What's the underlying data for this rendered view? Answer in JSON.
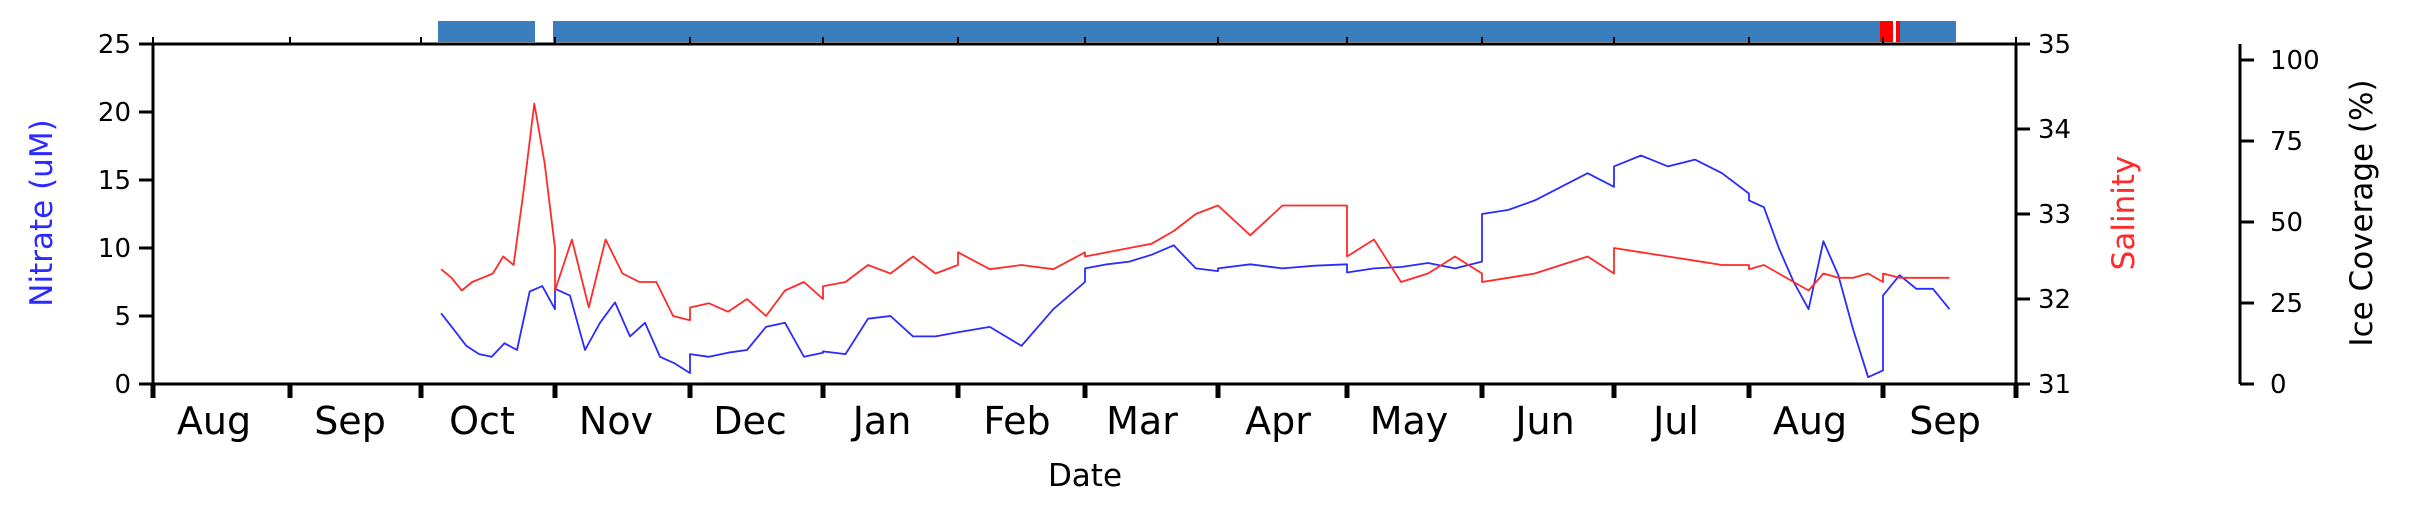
{
  "chart_data": {
    "type": "line",
    "xlabel": "Date",
    "x_tick_labels": [
      "Aug",
      "Sep",
      "Oct",
      "Nov",
      "Dec",
      "Jan",
      "Feb",
      "Mar",
      "Apr",
      "May",
      "Jun",
      "Jul",
      "Aug",
      "Sep"
    ],
    "y_left": {
      "label": "Nitrate (uM)",
      "color": "#2b2bff",
      "ylim": [
        0,
        25
      ],
      "ticks": [
        "0",
        "5",
        "10",
        "15",
        "20",
        "25"
      ]
    },
    "y_right": {
      "label": "Salinity",
      "color": "#ff2b2b",
      "ylim": [
        31,
        35
      ],
      "ticks": [
        "31",
        "32",
        "33",
        "34",
        "35"
      ]
    },
    "y_ice": {
      "label": "Ice Coverage (%)",
      "ylim": [
        0,
        100
      ],
      "ticks": [
        "0",
        "25",
        "50",
        "75",
        "100"
      ]
    },
    "ice_bar": {
      "colors": {
        "ice": "#3a7ebf",
        "open": "#ff0000"
      },
      "segments": [
        {
          "start": "Oct",
          "end": "Oct",
          "state": "ice"
        },
        {
          "start": "Oct",
          "end": "Aug",
          "state": "ice"
        },
        {
          "start": "Aug",
          "end": "Aug",
          "state": "open"
        },
        {
          "start": "Aug",
          "end": "Sep",
          "state": "ice"
        }
      ]
    },
    "series": [
      {
        "name": "Nitrate (uM)",
        "color": "#2b2bff",
        "axis": "left",
        "points": [
          [
            "Oct",
            5.2
          ],
          [
            "Oct",
            4.0
          ],
          [
            "Oct",
            2.8
          ],
          [
            "Oct",
            2.2
          ],
          [
            "Oct",
            2.0
          ],
          [
            "Oct",
            3.0
          ],
          [
            "Oct",
            2.5
          ],
          [
            "Oct",
            6.8
          ],
          [
            "Oct",
            7.2
          ],
          [
            "Oct",
            5.5
          ],
          [
            "Nov",
            7.0
          ],
          [
            "Nov",
            6.5
          ],
          [
            "Nov",
            2.5
          ],
          [
            "Nov",
            4.5
          ],
          [
            "Nov",
            6.0
          ],
          [
            "Nov",
            3.5
          ],
          [
            "Nov",
            4.5
          ],
          [
            "Nov",
            2.0
          ],
          [
            "Nov",
            1.5
          ],
          [
            "Nov",
            0.8
          ],
          [
            "Dec",
            2.2
          ],
          [
            "Dec",
            2.0
          ],
          [
            "Dec",
            2.3
          ],
          [
            "Dec",
            2.5
          ],
          [
            "Dec",
            4.2
          ],
          [
            "Dec",
            4.5
          ],
          [
            "Dec",
            2.0
          ],
          [
            "Dec",
            2.3
          ],
          [
            "Jan",
            2.4
          ],
          [
            "Jan",
            2.2
          ],
          [
            "Jan",
            4.8
          ],
          [
            "Jan",
            5.0
          ],
          [
            "Jan",
            3.5
          ],
          [
            "Jan",
            3.5
          ],
          [
            "Jan",
            3.8
          ],
          [
            "Feb",
            3.8
          ],
          [
            "Feb",
            4.2
          ],
          [
            "Feb",
            2.8
          ],
          [
            "Feb",
            5.5
          ],
          [
            "Feb",
            7.5
          ],
          [
            "Mar",
            8.5
          ],
          [
            "Mar",
            8.8
          ],
          [
            "Mar",
            9.0
          ],
          [
            "Mar",
            9.5
          ],
          [
            "Mar",
            10.2
          ],
          [
            "Mar",
            8.5
          ],
          [
            "Mar",
            8.3
          ],
          [
            "Apr",
            8.5
          ],
          [
            "Apr",
            8.8
          ],
          [
            "Apr",
            8.5
          ],
          [
            "Apr",
            8.7
          ],
          [
            "Apr",
            8.8
          ],
          [
            "May",
            8.2
          ],
          [
            "May",
            8.5
          ],
          [
            "May",
            8.6
          ],
          [
            "May",
            8.9
          ],
          [
            "May",
            8.5
          ],
          [
            "May",
            9.0
          ],
          [
            "Jun",
            12.5
          ],
          [
            "Jun",
            12.8
          ],
          [
            "Jun",
            13.5
          ],
          [
            "Jun",
            14.5
          ],
          [
            "Jun",
            15.5
          ],
          [
            "Jun",
            14.5
          ],
          [
            "Jul",
            16.0
          ],
          [
            "Jul",
            16.8
          ],
          [
            "Jul",
            16.0
          ],
          [
            "Jul",
            16.5
          ],
          [
            "Jul",
            15.5
          ],
          [
            "Jul",
            14.0
          ],
          [
            "Aug",
            13.5
          ],
          [
            "Aug",
            13.0
          ],
          [
            "Aug",
            10.0
          ],
          [
            "Aug",
            7.5
          ],
          [
            "Aug",
            5.5
          ],
          [
            "Aug",
            10.5
          ],
          [
            "Aug",
            8.0
          ],
          [
            "Aug",
            4.0
          ],
          [
            "Aug",
            0.5
          ],
          [
            "Aug",
            1.0
          ],
          [
            "Sep",
            6.5
          ],
          [
            "Sep",
            8.0
          ],
          [
            "Sep",
            7.0
          ],
          [
            "Sep",
            7.0
          ],
          [
            "Sep",
            5.5
          ]
        ]
      },
      {
        "name": "Salinity",
        "color": "#ff2b2b",
        "axis": "right",
        "points": [
          [
            "Oct",
            32.35
          ],
          [
            "Oct",
            32.25
          ],
          [
            "Oct",
            32.1
          ],
          [
            "Oct",
            32.2
          ],
          [
            "Oct",
            32.25
          ],
          [
            "Oct",
            32.3
          ],
          [
            "Oct",
            32.5
          ],
          [
            "Oct",
            32.4
          ],
          [
            "Oct",
            33.3
          ],
          [
            "Oct",
            34.3
          ],
          [
            "Oct",
            33.6
          ],
          [
            "Oct",
            32.6
          ],
          [
            "Nov",
            32.1
          ],
          [
            "Nov",
            32.7
          ],
          [
            "Nov",
            31.9
          ],
          [
            "Nov",
            32.7
          ],
          [
            "Nov",
            32.3
          ],
          [
            "Nov",
            32.2
          ],
          [
            "Nov",
            32.2
          ],
          [
            "Nov",
            31.8
          ],
          [
            "Nov",
            31.75
          ],
          [
            "Dec",
            31.9
          ],
          [
            "Dec",
            31.95
          ],
          [
            "Dec",
            31.85
          ],
          [
            "Dec",
            32.0
          ],
          [
            "Dec",
            31.8
          ],
          [
            "Dec",
            32.1
          ],
          [
            "Dec",
            32.2
          ],
          [
            "Dec",
            32.0
          ],
          [
            "Jan",
            32.15
          ],
          [
            "Jan",
            32.2
          ],
          [
            "Jan",
            32.4
          ],
          [
            "Jan",
            32.3
          ],
          [
            "Jan",
            32.5
          ],
          [
            "Jan",
            32.3
          ],
          [
            "Jan",
            32.4
          ],
          [
            "Feb",
            32.55
          ],
          [
            "Feb",
            32.35
          ],
          [
            "Feb",
            32.4
          ],
          [
            "Feb",
            32.35
          ],
          [
            "Feb",
            32.55
          ],
          [
            "Mar",
            32.5
          ],
          [
            "Mar",
            32.55
          ],
          [
            "Mar",
            32.6
          ],
          [
            "Mar",
            32.65
          ],
          [
            "Mar",
            32.8
          ],
          [
            "Mar",
            33.0
          ],
          [
            "Mar",
            33.1
          ],
          [
            "Apr",
            33.1
          ],
          [
            "Apr",
            32.75
          ],
          [
            "Apr",
            33.1
          ],
          [
            "Apr",
            33.1
          ],
          [
            "Apr",
            33.1
          ],
          [
            "May",
            32.5
          ],
          [
            "May",
            32.7
          ],
          [
            "May",
            32.2
          ],
          [
            "May",
            32.3
          ],
          [
            "May",
            32.5
          ],
          [
            "May",
            32.3
          ],
          [
            "Jun",
            32.2
          ],
          [
            "Jun",
            32.25
          ],
          [
            "Jun",
            32.3
          ],
          [
            "Jun",
            32.4
          ],
          [
            "Jun",
            32.5
          ],
          [
            "Jun",
            32.3
          ],
          [
            "Jul",
            32.6
          ],
          [
            "Jul",
            32.55
          ],
          [
            "Jul",
            32.5
          ],
          [
            "Jul",
            32.45
          ],
          [
            "Jul",
            32.4
          ],
          [
            "Jul",
            32.4
          ],
          [
            "Aug",
            32.35
          ],
          [
            "Aug",
            32.4
          ],
          [
            "Aug",
            32.3
          ],
          [
            "Aug",
            32.2
          ],
          [
            "Aug",
            32.1
          ],
          [
            "Aug",
            32.3
          ],
          [
            "Aug",
            32.25
          ],
          [
            "Aug",
            32.25
          ],
          [
            "Aug",
            32.3
          ],
          [
            "Aug",
            32.2
          ],
          [
            "Sep",
            32.3
          ],
          [
            "Sep",
            32.25
          ],
          [
            "Sep",
            32.25
          ],
          [
            "Sep",
            32.25
          ],
          [
            "Sep",
            32.25
          ]
        ]
      }
    ],
    "grid": false
  }
}
